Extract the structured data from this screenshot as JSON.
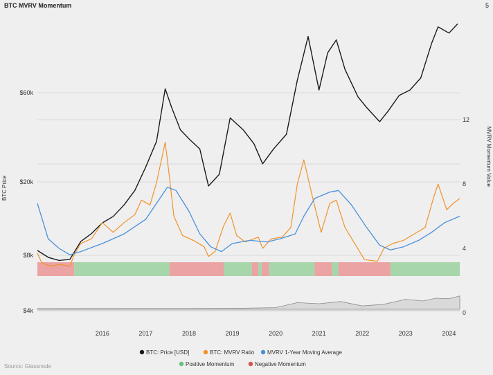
{
  "title": "BTC MVRV Momentum",
  "corner_value": "5",
  "source": "Source: Glassnode",
  "colors": {
    "price": "#1a1a1a",
    "mvrv": "#f0932b",
    "ma": "#4a90d9",
    "positive": "#a6d6a9",
    "negative": "#eba3a3",
    "grid": "#d8d8d8",
    "background": "#efefef"
  },
  "chart_data": {
    "type": "line",
    "title": "BTC MVRV Momentum",
    "ylabel_left": "BTC Price",
    "ylabel_right": "MVRV Momentum Value",
    "y_left_ticks": [
      "$4k",
      "$8k",
      "$20k",
      "$60k"
    ],
    "y_right_ticks": [
      "0",
      "4",
      "8",
      "12"
    ],
    "x_ticks": [
      "2016",
      "2017",
      "2018",
      "2019",
      "2020",
      "2021",
      "2022",
      "2023",
      "2024"
    ],
    "x_range": [
      2015.0,
      2024.75
    ],
    "price_scale": "log",
    "grid": true,
    "legend_placement": "bottom",
    "series": [
      {
        "name": "BTC: Price [USD]",
        "axis": "left",
        "points": [
          [
            2015.0,
            8500
          ],
          [
            2015.25,
            7800
          ],
          [
            2015.5,
            7500
          ],
          [
            2015.75,
            7600
          ],
          [
            2016.0,
            9500
          ],
          [
            2016.25,
            10500
          ],
          [
            2016.5,
            12000
          ],
          [
            2016.75,
            13000
          ],
          [
            2017.0,
            15000
          ],
          [
            2017.25,
            18000
          ],
          [
            2017.5,
            24000
          ],
          [
            2017.75,
            33000
          ],
          [
            2017.95,
            63000
          ],
          [
            2018.1,
            50000
          ],
          [
            2018.3,
            38000
          ],
          [
            2018.5,
            34000
          ],
          [
            2018.75,
            30000
          ],
          [
            2018.95,
            19000
          ],
          [
            2019.2,
            22000
          ],
          [
            2019.45,
            44000
          ],
          [
            2019.75,
            38000
          ],
          [
            2020.0,
            32000
          ],
          [
            2020.2,
            25000
          ],
          [
            2020.45,
            30000
          ],
          [
            2020.75,
            36000
          ],
          [
            2021.0,
            70000
          ],
          [
            2021.25,
            120000
          ],
          [
            2021.5,
            62000
          ],
          [
            2021.7,
            98000
          ],
          [
            2021.9,
            115000
          ],
          [
            2022.1,
            80000
          ],
          [
            2022.4,
            57000
          ],
          [
            2022.6,
            50000
          ],
          [
            2022.9,
            42000
          ],
          [
            2023.1,
            48000
          ],
          [
            2023.35,
            58000
          ],
          [
            2023.6,
            62000
          ],
          [
            2023.85,
            72000
          ],
          [
            2024.1,
            110000
          ],
          [
            2024.25,
            135000
          ],
          [
            2024.5,
            125000
          ],
          [
            2024.7,
            140000
          ]
        ]
      },
      {
        "name": "BTC: MVRV Ratio",
        "axis": "right",
        "points": [
          [
            2015.0,
            3.7
          ],
          [
            2015.1,
            3.1
          ],
          [
            2015.3,
            2.9
          ],
          [
            2015.5,
            3.0
          ],
          [
            2015.75,
            2.9
          ],
          [
            2015.85,
            3.6
          ],
          [
            2016.0,
            4.3
          ],
          [
            2016.25,
            4.6
          ],
          [
            2016.5,
            5.6
          ],
          [
            2016.75,
            5.0
          ],
          [
            2017.0,
            5.6
          ],
          [
            2017.25,
            6.1
          ],
          [
            2017.4,
            7.0
          ],
          [
            2017.6,
            6.7
          ],
          [
            2017.75,
            8.1
          ],
          [
            2017.95,
            10.6
          ],
          [
            2018.05,
            8.4
          ],
          [
            2018.15,
            6.0
          ],
          [
            2018.35,
            4.8
          ],
          [
            2018.6,
            4.5
          ],
          [
            2018.85,
            4.1
          ],
          [
            2018.95,
            3.5
          ],
          [
            2019.1,
            3.8
          ],
          [
            2019.3,
            5.4
          ],
          [
            2019.45,
            6.2
          ],
          [
            2019.6,
            4.8
          ],
          [
            2019.8,
            4.4
          ],
          [
            2020.1,
            4.7
          ],
          [
            2020.2,
            4.0
          ],
          [
            2020.4,
            4.6
          ],
          [
            2020.65,
            4.7
          ],
          [
            2020.85,
            5.3
          ],
          [
            2021.0,
            8.0
          ],
          [
            2021.15,
            9.5
          ],
          [
            2021.35,
            7.2
          ],
          [
            2021.55,
            5.0
          ],
          [
            2021.75,
            6.8
          ],
          [
            2021.9,
            7.0
          ],
          [
            2022.1,
            5.3
          ],
          [
            2022.35,
            4.2
          ],
          [
            2022.55,
            3.3
          ],
          [
            2022.85,
            3.2
          ],
          [
            2023.0,
            4.0
          ],
          [
            2023.2,
            4.3
          ],
          [
            2023.45,
            4.5
          ],
          [
            2023.7,
            4.9
          ],
          [
            2023.95,
            5.3
          ],
          [
            2024.15,
            7.2
          ],
          [
            2024.25,
            8.0
          ],
          [
            2024.45,
            6.4
          ],
          [
            2024.6,
            6.8
          ],
          [
            2024.75,
            7.1
          ]
        ]
      },
      {
        "name": "MVRV 1-Year Moving Average",
        "axis": "right",
        "points": [
          [
            2015.0,
            6.8
          ],
          [
            2015.25,
            4.6
          ],
          [
            2015.5,
            4.0
          ],
          [
            2015.75,
            3.6
          ],
          [
            2016.0,
            3.8
          ],
          [
            2016.5,
            4.3
          ],
          [
            2017.0,
            4.9
          ],
          [
            2017.5,
            5.8
          ],
          [
            2017.8,
            7.0
          ],
          [
            2018.0,
            7.8
          ],
          [
            2018.2,
            7.6
          ],
          [
            2018.5,
            6.3
          ],
          [
            2018.75,
            4.9
          ],
          [
            2019.0,
            4.1
          ],
          [
            2019.25,
            3.8
          ],
          [
            2019.5,
            4.3
          ],
          [
            2019.9,
            4.5
          ],
          [
            2020.3,
            4.4
          ],
          [
            2020.6,
            4.6
          ],
          [
            2020.95,
            4.9
          ],
          [
            2021.15,
            6.0
          ],
          [
            2021.4,
            7.1
          ],
          [
            2021.75,
            7.5
          ],
          [
            2021.95,
            7.6
          ],
          [
            2022.25,
            6.7
          ],
          [
            2022.6,
            5.3
          ],
          [
            2022.9,
            4.2
          ],
          [
            2023.15,
            3.9
          ],
          [
            2023.45,
            4.1
          ],
          [
            2023.8,
            4.5
          ],
          [
            2024.1,
            5.0
          ],
          [
            2024.4,
            5.6
          ],
          [
            2024.75,
            6.0
          ]
        ]
      }
    ],
    "momentum_segments": [
      {
        "start": 2015.0,
        "end": 2015.85,
        "state": "negative"
      },
      {
        "start": 2015.85,
        "end": 2018.05,
        "state": "positive"
      },
      {
        "start": 2018.05,
        "end": 2019.3,
        "state": "negative"
      },
      {
        "start": 2019.3,
        "end": 2019.95,
        "state": "positive"
      },
      {
        "start": 2019.95,
        "end": 2020.1,
        "state": "negative"
      },
      {
        "start": 2020.1,
        "end": 2020.18,
        "state": "positive"
      },
      {
        "start": 2020.18,
        "end": 2020.35,
        "state": "negative"
      },
      {
        "start": 2020.35,
        "end": 2021.4,
        "state": "positive"
      },
      {
        "start": 2021.4,
        "end": 2021.8,
        "state": "negative"
      },
      {
        "start": 2021.8,
        "end": 2021.95,
        "state": "positive"
      },
      {
        "start": 2021.95,
        "end": 2023.15,
        "state": "negative"
      },
      {
        "start": 2023.15,
        "end": 2024.75,
        "state": "positive"
      }
    ],
    "sub_panel_area": [
      [
        2015.0,
        0.05
      ],
      [
        2019.5,
        0.08
      ],
      [
        2020.5,
        0.15
      ],
      [
        2021.0,
        0.6
      ],
      [
        2021.5,
        0.5
      ],
      [
        2022.0,
        0.7
      ],
      [
        2022.5,
        0.3
      ],
      [
        2023.0,
        0.45
      ],
      [
        2023.5,
        0.9
      ],
      [
        2023.9,
        0.75
      ],
      [
        2024.2,
        1.0
      ],
      [
        2024.5,
        0.95
      ],
      [
        2024.75,
        1.2
      ]
    ],
    "legend": [
      {
        "label": "BTC: Price [USD]",
        "color": "#1a1a1a"
      },
      {
        "label": "BTC: MVRV Ratio",
        "color": "#f0932b"
      },
      {
        "label": "MVRV 1-Year Moving Average",
        "color": "#4a90d9"
      },
      {
        "label": "Positive Momentum",
        "color": "#6cc07a"
      },
      {
        "label": "Negative Momentum",
        "color": "#d9534f"
      }
    ]
  }
}
